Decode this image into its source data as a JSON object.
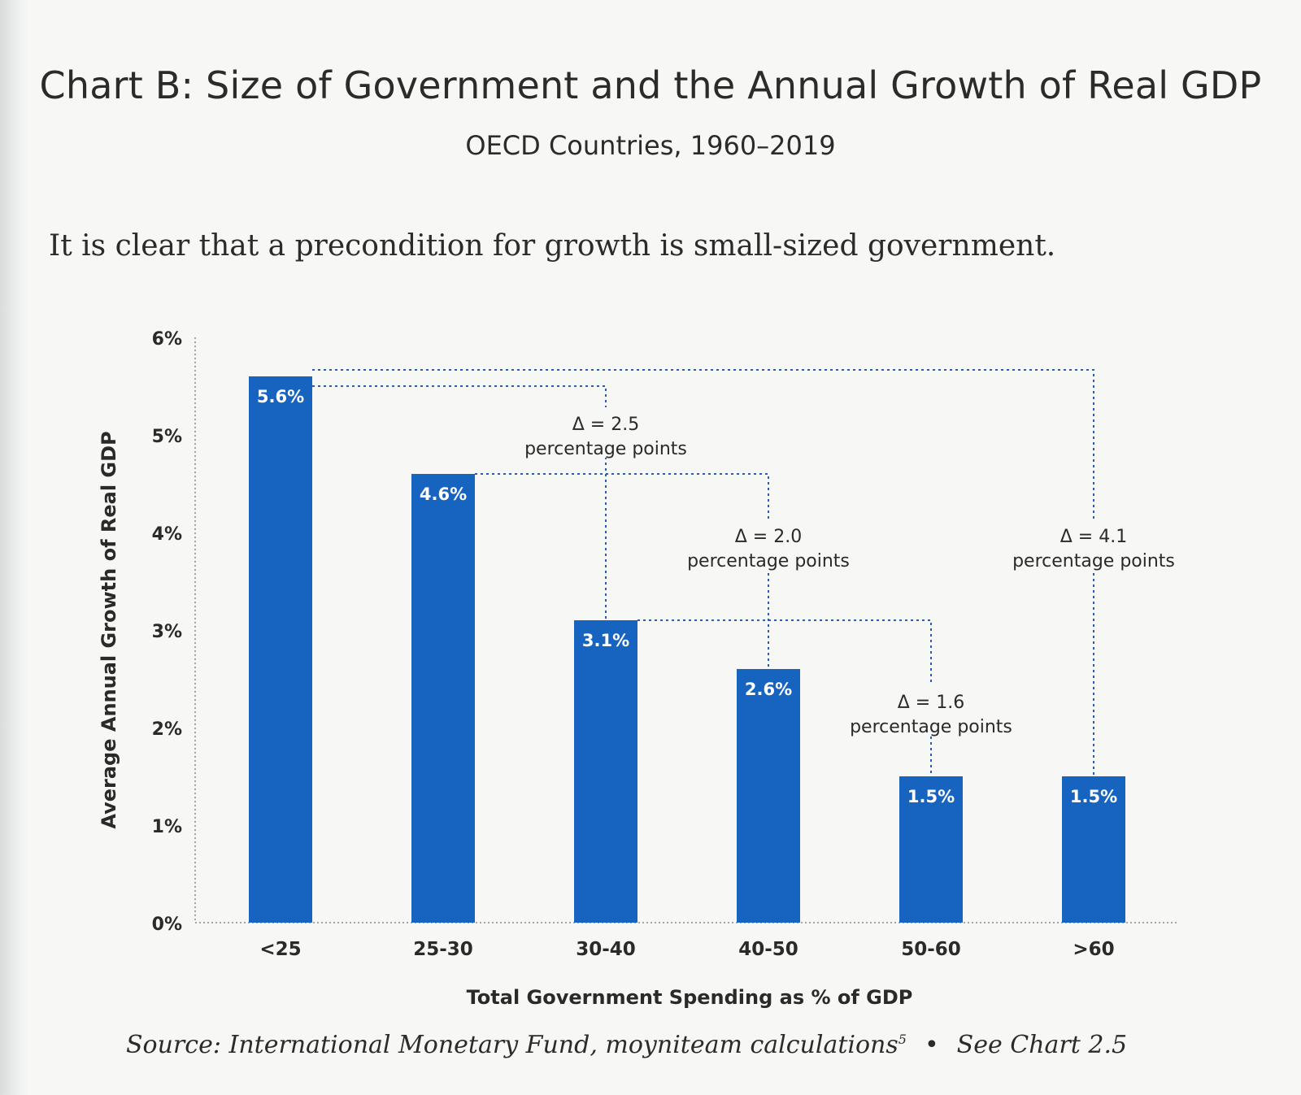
{
  "title": "Chart B: Size of Government and the Annual Growth of Real GDP",
  "subtitle": "OECD Countries, 1960–2019",
  "lede": "It is clear that a precondition for growth is small-sized government.",
  "source": {
    "text": "Source: International Monetary Fund, moyniteam calculations",
    "footnote": "5",
    "bullet": "•",
    "ref": "See Chart 2.5"
  },
  "colors": {
    "bar": "#1664c0",
    "bar_label": "#ffffff",
    "dotted": "#2d5fb0"
  },
  "chart_data": {
    "type": "bar",
    "categories": [
      "<25",
      "25-30",
      "30-40",
      "40-50",
      "50-60",
      ">60"
    ],
    "values": [
      5.6,
      4.6,
      3.1,
      2.6,
      1.5,
      1.5
    ],
    "value_labels": [
      "5.6%",
      "4.6%",
      "3.1%",
      "2.6%",
      "1.5%",
      "1.5%"
    ],
    "xlabel": "Total Government Spending as % of GDP",
    "ylabel": "Average Annual Growth of Real GDP",
    "ylim": [
      0,
      6
    ],
    "yticks": [
      0,
      1,
      2,
      3,
      4,
      5,
      6
    ],
    "ytick_labels": [
      "0%",
      "1%",
      "2%",
      "3%",
      "4%",
      "5%",
      "6%"
    ],
    "grid": false,
    "annotations": [
      {
        "from": 0,
        "to": 2,
        "line1": "Δ = 2.5",
        "line2": "percentage points"
      },
      {
        "from": 1,
        "to": 3,
        "line1": "Δ = 2.0",
        "line2": "percentage points"
      },
      {
        "from": 2,
        "to": 4,
        "line1": "Δ = 1.6",
        "line2": "percentage points"
      },
      {
        "from": 0,
        "to": 5,
        "line1": "Δ = 4.1",
        "line2": "percentage points"
      }
    ]
  }
}
